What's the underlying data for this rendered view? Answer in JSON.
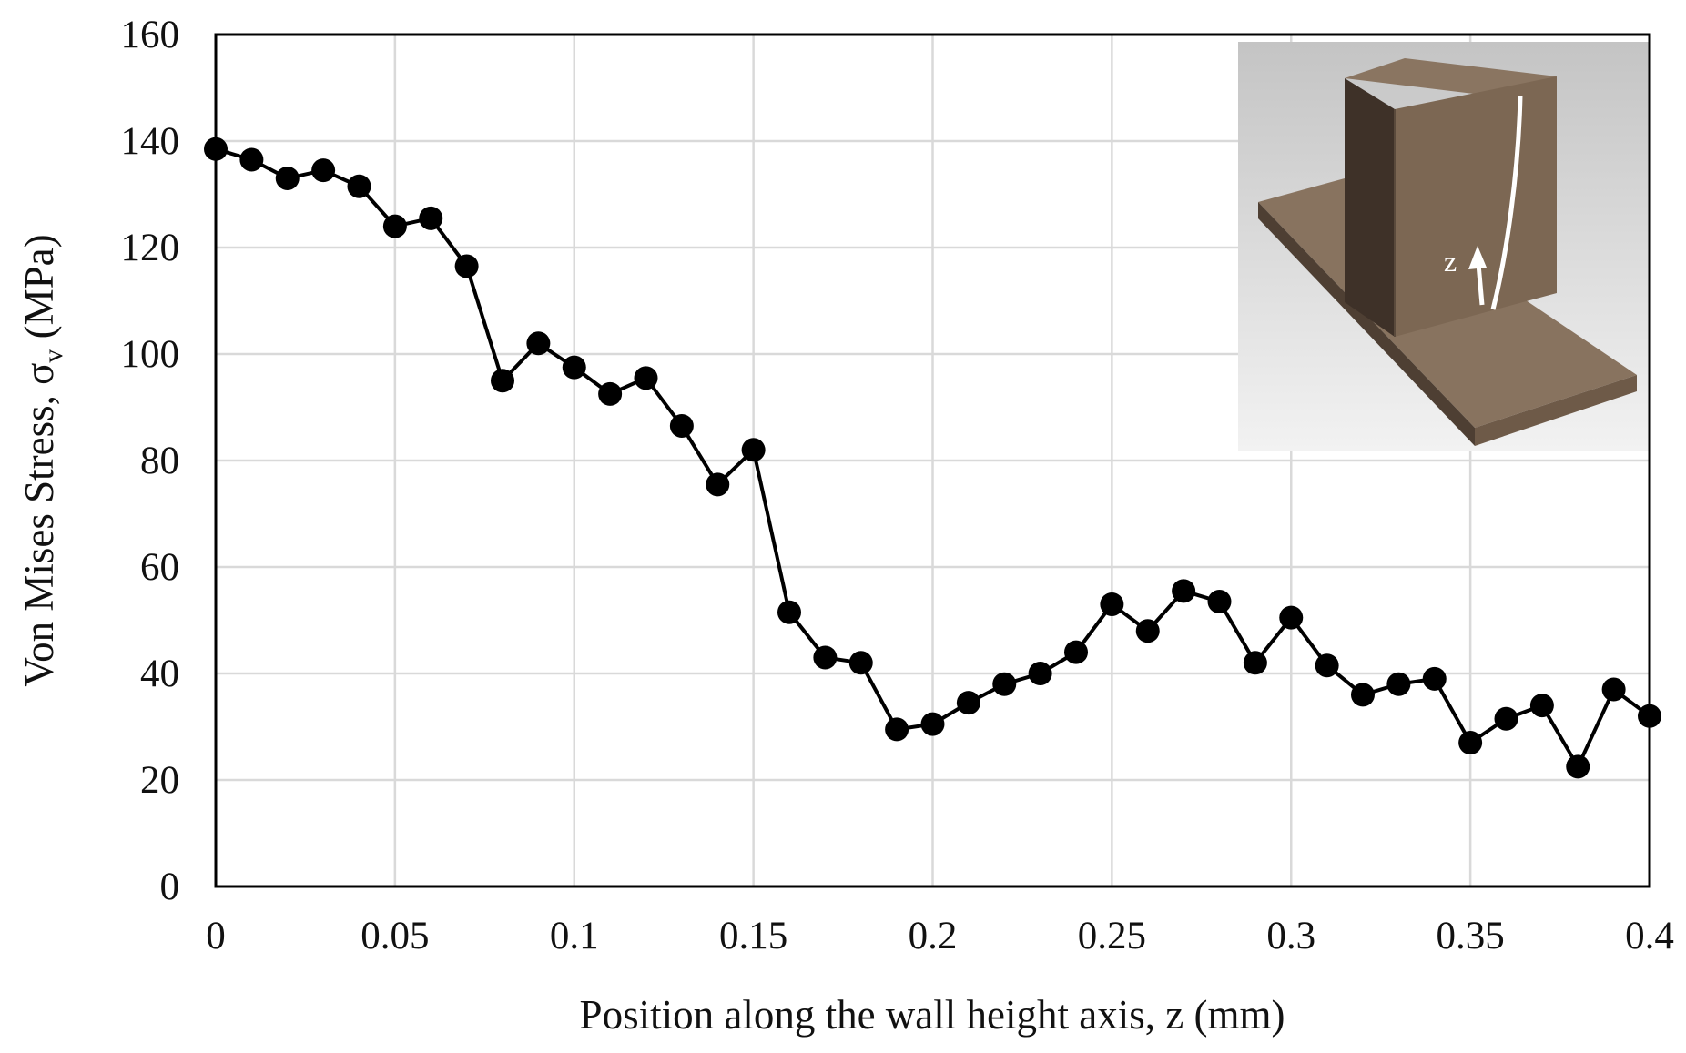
{
  "chart_data": {
    "type": "line",
    "xlabel": "Position along the wall height axis, z (mm)",
    "ylabel_main": "Von Mises Stress, σ",
    "ylabel_sub": "v",
    "ylabel_unit": " (MPa)",
    "xlim": [
      0,
      0.4
    ],
    "ylim": [
      0,
      160
    ],
    "x_ticks": [
      0,
      0.05,
      0.1,
      0.15,
      0.2,
      0.25,
      0.3,
      0.35,
      0.4
    ],
    "x_tick_labels": [
      "0",
      "0.05",
      "0.1",
      "0.15",
      "0.2",
      "0.25",
      "0.3",
      "0.35",
      "0.4"
    ],
    "y_ticks": [
      0,
      20,
      40,
      60,
      80,
      100,
      120,
      140,
      160
    ],
    "y_tick_labels": [
      "0",
      "20",
      "40",
      "60",
      "80",
      "100",
      "120",
      "140",
      "160"
    ],
    "grid": true,
    "series": [
      {
        "color": "#000000",
        "marker": "circle",
        "x": [
          0,
          0.01,
          0.02,
          0.03,
          0.04,
          0.05,
          0.06,
          0.07,
          0.08,
          0.09,
          0.1,
          0.11,
          0.12,
          0.13,
          0.14,
          0.15,
          0.16,
          0.17,
          0.18,
          0.19,
          0.2,
          0.21,
          0.22,
          0.23,
          0.24,
          0.25,
          0.26,
          0.27,
          0.28,
          0.29,
          0.3,
          0.31,
          0.32,
          0.33,
          0.34,
          0.35,
          0.36,
          0.37,
          0.38,
          0.39,
          0.4
        ],
        "y": [
          138.5,
          136.5,
          133,
          134.5,
          131.5,
          124,
          125.5,
          116.5,
          95,
          102,
          97.5,
          92.5,
          95.5,
          86.5,
          75.5,
          82,
          51.5,
          43,
          42,
          29.5,
          30.5,
          34.5,
          38,
          40,
          44,
          53,
          48,
          55.5,
          53.5,
          42,
          50.5,
          41.5,
          36,
          38,
          39,
          27,
          31.5,
          34,
          22.5,
          37,
          32
        ]
      }
    ]
  },
  "inset": {
    "axis_label": "z",
    "colors": {
      "background_top": "#c4c4c4",
      "background_bottom": "#f2f2f2",
      "top_face": "#88735f",
      "front_face": "#7c6753",
      "dark_face": "#3e3128",
      "edge": "#5a4a3c"
    }
  }
}
